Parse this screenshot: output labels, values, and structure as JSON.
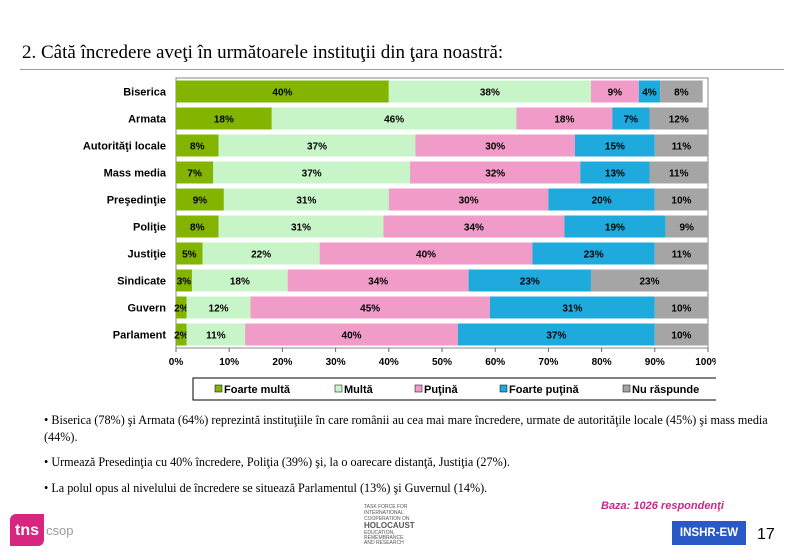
{
  "title": "2. Câtă încredere aveţi în următoarele instituţii din ţara noastră:",
  "chart_data": {
    "type": "bar",
    "orientation": "horizontal-stacked-100",
    "categories": [
      "Biserica",
      "Armata",
      "Autorităţi locale",
      "Mass media",
      "Preşedinţie",
      "Poliţie",
      "Justiţie",
      "Sindicate",
      "Guvern",
      "Parlament"
    ],
    "series": [
      {
        "name": "Foarte multă",
        "color": "#82b400",
        "values": [
          40,
          18,
          8,
          7,
          9,
          8,
          5,
          3,
          2,
          2
        ]
      },
      {
        "name": "Multă",
        "color": "#c8f5c8",
        "values": [
          38,
          46,
          37,
          37,
          31,
          31,
          22,
          18,
          12,
          11
        ]
      },
      {
        "name": "Puţină",
        "color": "#f09bc8",
        "values": [
          9,
          18,
          30,
          32,
          30,
          34,
          40,
          34,
          45,
          40
        ]
      },
      {
        "name": "Foarte puţină",
        "color": "#1eaadc",
        "values": [
          4,
          7,
          15,
          13,
          20,
          19,
          23,
          23,
          31,
          37
        ]
      },
      {
        "name": "Nu răspunde",
        "color": "#a5a5a5",
        "values": [
          8,
          12,
          11,
          11,
          10,
          9,
          11,
          23,
          10,
          10
        ]
      }
    ],
    "xticks": [
      "0%",
      "10%",
      "20%",
      "30%",
      "40%",
      "50%",
      "60%",
      "70%",
      "80%",
      "90%",
      "100%"
    ],
    "xlim": [
      0,
      100
    ],
    "legend_position": "bottom"
  },
  "notes": [
    "• Biserica (78%) şi Armata (64%) reprezintă instituţiile în care românii au cea mai mare încredere, urmate de autorităţile locale (45%) şi mass media (44%).",
    "• Urmează Presedinţia cu 40% încredere, Poliţia (39%) şi, la o oarecare distanţă, Justiţia (27%).",
    "• La polul opus al nivelului de încredere se situează Parlamentul (13%) şi Guvernul (14%)."
  ],
  "baza": "Baza: 1026 respondenţi",
  "badge": "INSHR-EW",
  "page_number": "17",
  "logo": {
    "tns": "tns",
    "csop": "csop"
  },
  "partner_logo_text": "TASK FORCE FOR INTERNATIONAL COOPERATION ON HOLOCAUST EDUCATION, REMEMBRANCE AND RESEARCH"
}
